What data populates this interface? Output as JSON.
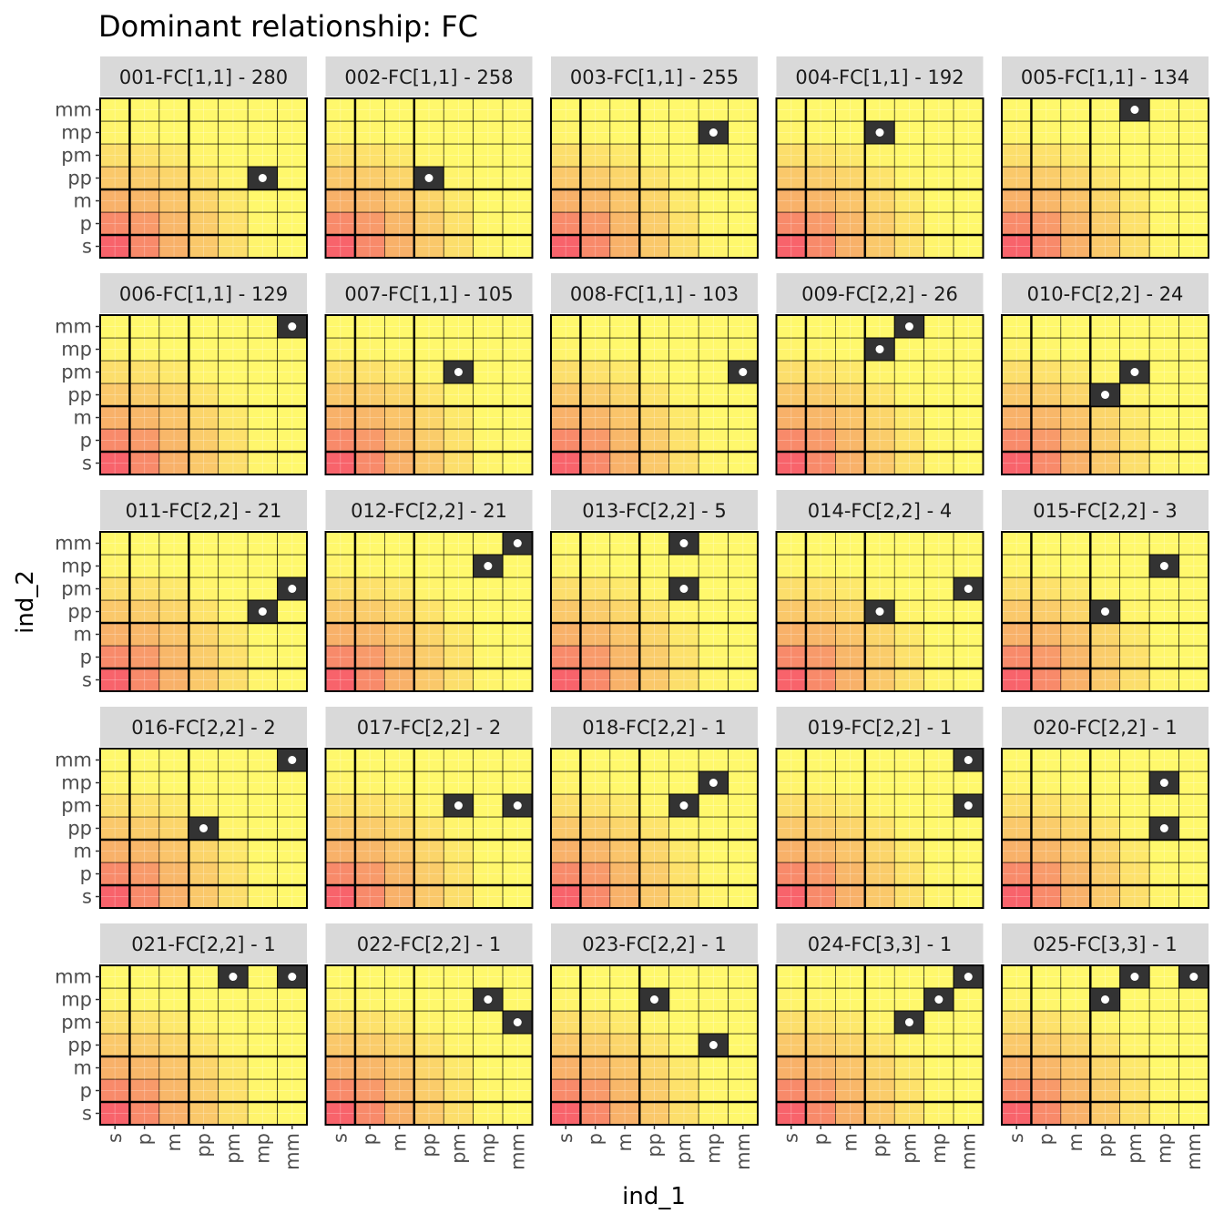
{
  "chart_data": {
    "type": "heatmap",
    "title": "Dominant relationship: FC",
    "xlabel": "ind_1",
    "ylabel": "ind_2",
    "x_categories": [
      "s",
      "p",
      "m",
      "pp",
      "pm",
      "mp",
      "mm"
    ],
    "y_categories": [
      "s",
      "p",
      "m",
      "pp",
      "pm",
      "mp",
      "mm"
    ],
    "grid": true,
    "colors": {
      "strip_bg": "#d9d9d9",
      "highlight_cell": "#333333",
      "dot": "#ffffff",
      "fill_low": "#fff86c",
      "fill_mid": "#f8b469",
      "fill_high": "#f8636b",
      "panel_border": "#000000"
    },
    "panels": [
      {
        "label": "001-FC[1,1] - 280",
        "cells": [
          [
            "mp",
            "pp"
          ]
        ]
      },
      {
        "label": "002-FC[1,1] - 258",
        "cells": [
          [
            "pp",
            "pp"
          ]
        ]
      },
      {
        "label": "003-FC[1,1] - 255",
        "cells": [
          [
            "mp",
            "mp"
          ]
        ]
      },
      {
        "label": "004-FC[1,1] - 192",
        "cells": [
          [
            "pp",
            "mp"
          ]
        ]
      },
      {
        "label": "005-FC[1,1] - 134",
        "cells": [
          [
            "pm",
            "mm"
          ]
        ]
      },
      {
        "label": "006-FC[1,1] - 129",
        "cells": [
          [
            "mm",
            "mm"
          ]
        ]
      },
      {
        "label": "007-FC[1,1] - 105",
        "cells": [
          [
            "pm",
            "pm"
          ]
        ]
      },
      {
        "label": "008-FC[1,1] - 103",
        "cells": [
          [
            "mm",
            "pm"
          ]
        ]
      },
      {
        "label": "009-FC[2,2] - 26",
        "cells": [
          [
            "pp",
            "mp"
          ],
          [
            "pm",
            "mm"
          ]
        ]
      },
      {
        "label": "010-FC[2,2] - 24",
        "cells": [
          [
            "pp",
            "pp"
          ],
          [
            "pm",
            "pm"
          ]
        ]
      },
      {
        "label": "011-FC[2,2] - 21",
        "cells": [
          [
            "mp",
            "pp"
          ],
          [
            "mm",
            "pm"
          ]
        ]
      },
      {
        "label": "012-FC[2,2] - 21",
        "cells": [
          [
            "mp",
            "mp"
          ],
          [
            "mm",
            "mm"
          ]
        ]
      },
      {
        "label": "013-FC[2,2] - 5",
        "cells": [
          [
            "pm",
            "mm"
          ],
          [
            "pm",
            "pm"
          ]
        ]
      },
      {
        "label": "014-FC[2,2] - 4",
        "cells": [
          [
            "pp",
            "pp"
          ],
          [
            "mm",
            "pm"
          ]
        ]
      },
      {
        "label": "015-FC[2,2] - 3",
        "cells": [
          [
            "pp",
            "pp"
          ],
          [
            "mp",
            "mp"
          ]
        ]
      },
      {
        "label": "016-FC[2,2] - 2",
        "cells": [
          [
            "pp",
            "pp"
          ],
          [
            "mm",
            "mm"
          ]
        ]
      },
      {
        "label": "017-FC[2,2] - 2",
        "cells": [
          [
            "pm",
            "pm"
          ],
          [
            "mm",
            "pm"
          ]
        ]
      },
      {
        "label": "018-FC[2,2] - 1",
        "cells": [
          [
            "pm",
            "pm"
          ],
          [
            "mp",
            "mp"
          ]
        ]
      },
      {
        "label": "019-FC[2,2] - 1",
        "cells": [
          [
            "mm",
            "mm"
          ],
          [
            "mm",
            "pm"
          ]
        ]
      },
      {
        "label": "020-FC[2,2] - 1",
        "cells": [
          [
            "mp",
            "mp"
          ],
          [
            "mp",
            "pp"
          ]
        ]
      },
      {
        "label": "021-FC[2,2] - 1",
        "cells": [
          [
            "pm",
            "mm"
          ],
          [
            "mm",
            "mm"
          ]
        ]
      },
      {
        "label": "022-FC[2,2] - 1",
        "cells": [
          [
            "mp",
            "mp"
          ],
          [
            "mm",
            "pm"
          ]
        ]
      },
      {
        "label": "023-FC[2,2] - 1",
        "cells": [
          [
            "pp",
            "mp"
          ],
          [
            "mp",
            "pp"
          ]
        ]
      },
      {
        "label": "024-FC[3,3] - 1",
        "cells": [
          [
            "pm",
            "pm"
          ],
          [
            "mp",
            "mp"
          ],
          [
            "mm",
            "mm"
          ]
        ]
      },
      {
        "label": "025-FC[3,3] - 1",
        "cells": [
          [
            "pp",
            "mp"
          ],
          [
            "pm",
            "mm"
          ],
          [
            "mm",
            "mm"
          ]
        ]
      }
    ]
  }
}
